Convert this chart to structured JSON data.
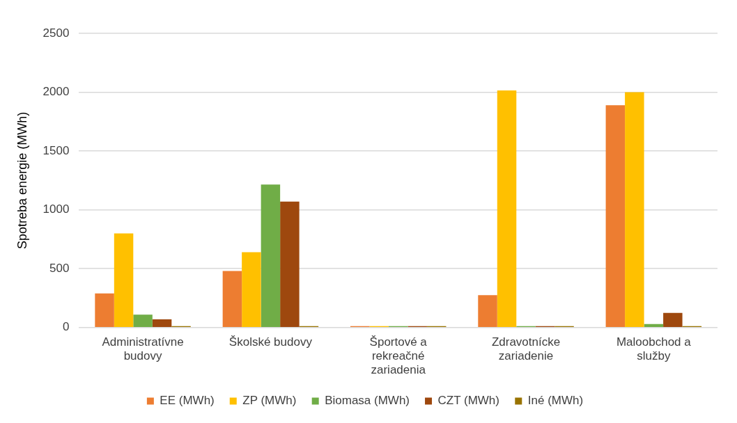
{
  "chart_data": {
    "type": "bar",
    "ylabel": "Spotreba energie (MWh)",
    "categories": [
      "Administratívne budovy",
      "Školské budovy",
      "Športové a rekreačné zariadenia",
      "Zdravotnícke zariadenie",
      "Maloobchod a služby"
    ],
    "series": [
      {
        "name": "EE (MWh)",
        "color": "#ed7d31",
        "values": [
          290,
          480,
          10,
          275,
          1890
        ]
      },
      {
        "name": "ZP (MWh)",
        "color": "#ffc000",
        "values": [
          800,
          640,
          0,
          2015,
          2000
        ]
      },
      {
        "name": "Biomasa (MWh)",
        "color": "#70ad47",
        "values": [
          110,
          1215,
          0,
          0,
          30
        ]
      },
      {
        "name": "CZT (MWh)",
        "color": "#9e480e",
        "values": [
          70,
          1070,
          0,
          0,
          125
        ]
      },
      {
        "name": "Iné (MWh)",
        "color": "#997300",
        "values": [
          0,
          0,
          0,
          0,
          0
        ]
      }
    ],
    "ylim": [
      0,
      2500
    ],
    "yticks": [
      0,
      500,
      1000,
      1500,
      2000,
      2500
    ],
    "grid": "y",
    "legend": "bottom"
  }
}
